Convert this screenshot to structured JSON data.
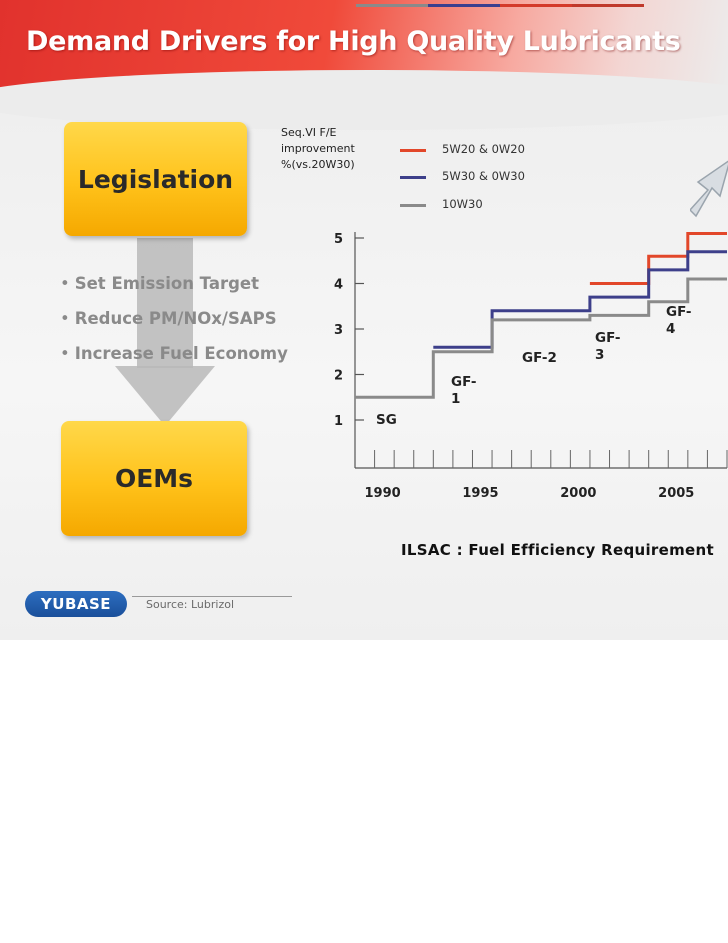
{
  "slide": {
    "title": "Demand Drivers for High Quality Lubricants",
    "top_line_colors": [
      "#8a8a8a",
      "#3a3f8f",
      "#d43a2a",
      "#c0392b"
    ],
    "legislation_label": "Legislation",
    "oems_label": "OEMs",
    "bullets": [
      "Set Emission Target",
      "Reduce PM/NOx/SAPS",
      "Increase Fuel Economy"
    ],
    "bullet_dot": "•",
    "footer": {
      "logo": "YUBASE",
      "source": "Source: Lubrizol"
    }
  },
  "chart_data": {
    "type": "line",
    "title": "",
    "ylabel": "Seq.VI F/E\nimprovement\n%(vs.20W30)",
    "caption": "ILSAC : Fuel Efficiency Requirement",
    "y_ticks": [
      "1",
      "2",
      "3",
      "4",
      "5"
    ],
    "ylim": [
      1,
      5
    ],
    "x_ticks": [
      "1990",
      "1995",
      "2000",
      "2005"
    ],
    "xlim": [
      1989,
      2008
    ],
    "grid": false,
    "legend_position": "top",
    "series": [
      {
        "name": "5W20 & 0W20",
        "color": "#e2472a",
        "x": [
          2001,
          2004,
          2004,
          2006,
          2006,
          2008
        ],
        "y": [
          4.0,
          4.0,
          4.6,
          4.6,
          5.1,
          5.1
        ]
      },
      {
        "name": "5W30 & 0W30",
        "color": "#3d3f8a",
        "x": [
          1993,
          1996,
          1996,
          2001,
          2001,
          2004,
          2004,
          2006,
          2006,
          2008
        ],
        "y": [
          2.6,
          2.6,
          3.4,
          3.4,
          3.7,
          3.7,
          4.3,
          4.3,
          4.7,
          4.7
        ]
      },
      {
        "name": "10W30",
        "color": "#8a8a8a",
        "x": [
          1989,
          1993,
          1993,
          1996,
          1996,
          2001,
          2001,
          2004,
          2004,
          2006,
          2006,
          2008
        ],
        "y": [
          1.5,
          1.5,
          2.5,
          2.5,
          3.2,
          3.2,
          3.3,
          3.3,
          3.6,
          3.6,
          4.1,
          4.1
        ]
      }
    ],
    "annotations": [
      "SG",
      "GF-\n1",
      "GF-2",
      "GF-\n3",
      "GF-\n4"
    ]
  }
}
